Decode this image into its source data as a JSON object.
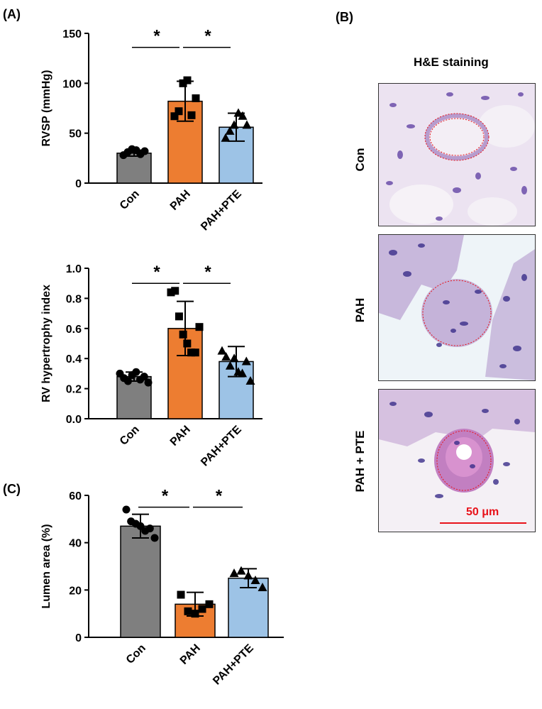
{
  "panels": {
    "A": "(A)",
    "B": "(B)",
    "C": "(C)"
  },
  "colors": {
    "Con": "#7f7f7f",
    "PAH": "#ed7d31",
    "PAH+PTE": "#9dc3e6",
    "scale": "#e8121a"
  },
  "chart_data": [
    {
      "type": "bar",
      "categories": [
        "Con",
        "PAH",
        "PAH+PTE"
      ],
      "values": [
        30,
        82,
        56
      ],
      "errors": [
        3,
        20,
        14
      ],
      "ylabel": "RVSP (mmHg)",
      "ylim": [
        0,
        150
      ],
      "yticks": [
        0,
        50,
        100,
        150
      ],
      "points": [
        [
          28,
          31,
          34,
          33,
          29,
          32
        ],
        [
          67,
          72,
          100,
          103,
          68,
          85
        ],
        [
          45,
          52,
          58,
          70,
          67,
          58
        ]
      ],
      "markers": [
        "circle",
        "square",
        "triangle"
      ],
      "significance": [
        {
          "from": 0,
          "to": 1,
          "label": "*"
        },
        {
          "from": 1,
          "to": 2,
          "label": "*"
        }
      ],
      "sig_y": 136
    },
    {
      "type": "bar",
      "categories": [
        "Con",
        "PAH",
        "PAH+PTE"
      ],
      "values": [
        0.28,
        0.6,
        0.38
      ],
      "errors": [
        0.03,
        0.18,
        0.1
      ],
      "ylabel": "RV hypertrophy index",
      "ylim": [
        0,
        1.0
      ],
      "yticks": [
        0,
        0.2,
        0.4,
        0.6,
        0.8,
        1.0
      ],
      "points": [
        [
          0.3,
          0.27,
          0.25,
          0.29,
          0.31,
          0.26,
          0.28,
          0.24
        ],
        [
          0.84,
          0.85,
          0.68,
          0.56,
          0.5,
          0.44,
          0.44,
          0.61
        ],
        [
          0.45,
          0.41,
          0.35,
          0.4,
          0.31,
          0.3,
          0.38,
          0.25
        ]
      ],
      "markers": [
        "circle",
        "square",
        "triangle"
      ],
      "significance": [
        {
          "from": 0,
          "to": 1,
          "label": "*"
        },
        {
          "from": 1,
          "to": 2,
          "label": "*"
        }
      ],
      "sig_y": 0.9
    },
    {
      "type": "bar",
      "categories": [
        "Con",
        "PAH",
        "PAH+PTE"
      ],
      "values": [
        47,
        14,
        25
      ],
      "errors": [
        5,
        5,
        4
      ],
      "ylabel": "Lumen area (%)",
      "ylim": [
        0,
        60
      ],
      "yticks": [
        0,
        20,
        40,
        60
      ],
      "points": [
        [
          54,
          49,
          48,
          47,
          45,
          46,
          42
        ],
        [
          18,
          11,
          10,
          12,
          14
        ],
        [
          27,
          28,
          26,
          24,
          21
        ]
      ],
      "markers": [
        "circle",
        "square",
        "triangle"
      ],
      "significance": [
        {
          "from": 0,
          "to": 1,
          "label": "*"
        },
        {
          "from": 1,
          "to": 2,
          "label": "*"
        }
      ],
      "sig_y": 55
    }
  ],
  "he": {
    "title": "H&E staining",
    "rows": [
      "Con",
      "PAH",
      "PAH + PTE"
    ],
    "scale_bar": "50 μm"
  }
}
